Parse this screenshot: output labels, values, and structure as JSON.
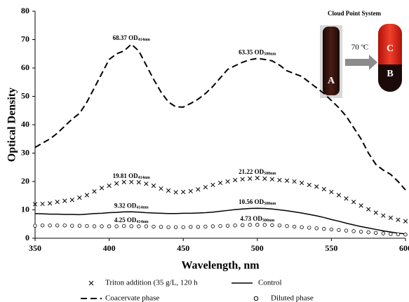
{
  "chart_data": {
    "type": "line",
    "x_label": "Wavelength, nm",
    "y_label": "Optical Density",
    "xlim": [
      350,
      600
    ],
    "xticks": [
      350,
      400,
      450,
      500,
      550,
      600
    ],
    "ylim": [
      0,
      80
    ],
    "yticks": [
      0,
      10,
      20,
      30,
      40,
      50,
      60,
      70,
      80
    ],
    "x": [
      350,
      355,
      360,
      365,
      370,
      375,
      380,
      385,
      390,
      395,
      400,
      405,
      410,
      415,
      420,
      425,
      430,
      435,
      440,
      445,
      450,
      455,
      460,
      465,
      470,
      475,
      480,
      485,
      490,
      495,
      500,
      505,
      510,
      515,
      520,
      525,
      530,
      535,
      540,
      545,
      550,
      555,
      560,
      565,
      570,
      575,
      580,
      585,
      590,
      595,
      600
    ],
    "series": [
      {
        "name": "Triton addition (35 g/L, 120 h",
        "color": "#000000",
        "marker": "x",
        "dash": "none",
        "values": [
          12,
          12.1,
          12.3,
          12.8,
          13.2,
          13.5,
          14.3,
          15.2,
          16.5,
          17.7,
          18.5,
          19.3,
          19.8,
          19.81,
          19.7,
          19.2,
          18.5,
          17.5,
          16.8,
          16.2,
          16.3,
          16.6,
          17.2,
          18,
          18.8,
          19.5,
          20,
          20.5,
          20.8,
          21,
          21.22,
          21,
          20.8,
          20.5,
          20.3,
          20,
          19.5,
          18.8,
          18.2,
          17.3,
          16.3,
          15.2,
          14,
          12.8,
          11.5,
          10.2,
          9,
          8,
          7.2,
          6.5,
          6
        ]
      },
      {
        "name": "Control",
        "color": "#000000",
        "marker": "none",
        "dash": "solid",
        "values": [
          8.7,
          8.6,
          8.5,
          8.5,
          8.4,
          8.4,
          8.3,
          8.5,
          8.7,
          8.8,
          9,
          9.1,
          9.3,
          9.32,
          9.2,
          9,
          8.9,
          8.8,
          8.7,
          8.7,
          8.8,
          8.8,
          8.9,
          9,
          9.2,
          9.5,
          9.8,
          10.1,
          10.3,
          10.5,
          10.56,
          10.5,
          10.3,
          10,
          9.7,
          9.3,
          8.9,
          8.4,
          7.9,
          7.3,
          6.6,
          6,
          5.3,
          4.7,
          4.1,
          3.6,
          3.1,
          2.6,
          2.2,
          1.8,
          1.5
        ]
      },
      {
        "name": "Coacervate phase",
        "color": "#000000",
        "marker": "none",
        "dash": "dashed",
        "values": [
          32,
          33.5,
          35,
          37,
          39.5,
          42,
          44,
          48,
          53,
          58,
          63,
          65,
          66,
          68.37,
          66,
          61,
          56,
          51.5,
          48,
          46.3,
          46.2,
          47.5,
          49,
          51,
          53.5,
          56.5,
          59.5,
          60.8,
          62,
          62.9,
          63.35,
          63,
          62.5,
          61,
          59,
          58,
          57,
          55,
          53,
          51,
          48.5,
          46,
          43,
          39,
          35,
          30,
          26,
          24,
          22.5,
          20,
          17
        ]
      },
      {
        "name": "Diluted phase",
        "color": "#000000",
        "marker": "circle",
        "dash": "none",
        "values": [
          4.4,
          4.5,
          4.5,
          4.5,
          4.5,
          4.4,
          4.4,
          4.3,
          4.2,
          4.2,
          4.2,
          4.2,
          4.3,
          4.25,
          4.2,
          4.2,
          4.1,
          4,
          3.9,
          3.9,
          3.9,
          4,
          4,
          4.1,
          4.2,
          4.3,
          4.4,
          4.5,
          4.6,
          4.7,
          4.73,
          4.7,
          4.6,
          4.5,
          4.3,
          4.1,
          3.9,
          3.7,
          3.5,
          3.3,
          3.1,
          2.9,
          2.7,
          2.5,
          2.3,
          2.1,
          1.9,
          1.7,
          1.5,
          1.4,
          1.3
        ]
      }
    ],
    "annotations": [
      {
        "label": "68.37 OD",
        "sub": "414nm",
        "x": 415,
        "y": 68.37
      },
      {
        "label": "63.35 OD",
        "sub": "500nm",
        "x": 500,
        "y": 63.35
      },
      {
        "label": "19.81 OD",
        "sub": "414nm",
        "x": 415,
        "y": 19.81
      },
      {
        "label": "21.22 OD",
        "sub": "500nm",
        "x": 500,
        "y": 21.22
      },
      {
        "label": "9.32 OD",
        "sub": "414nm",
        "x": 415,
        "y": 9.32
      },
      {
        "label": "10.56 OD",
        "sub": "500nm",
        "x": 500,
        "y": 10.56
      },
      {
        "label": "4.25 OD",
        "sub": "414nm",
        "x": 415,
        "y": 4.25
      },
      {
        "label": "4.73 OD",
        "sub": "500nm",
        "x": 500,
        "y": 4.73
      }
    ],
    "inset": {
      "title": "Cloud Point System",
      "arrow_label": "70 ºC",
      "tube_a": "A",
      "tube_b": "B",
      "tube_c": "C"
    }
  }
}
